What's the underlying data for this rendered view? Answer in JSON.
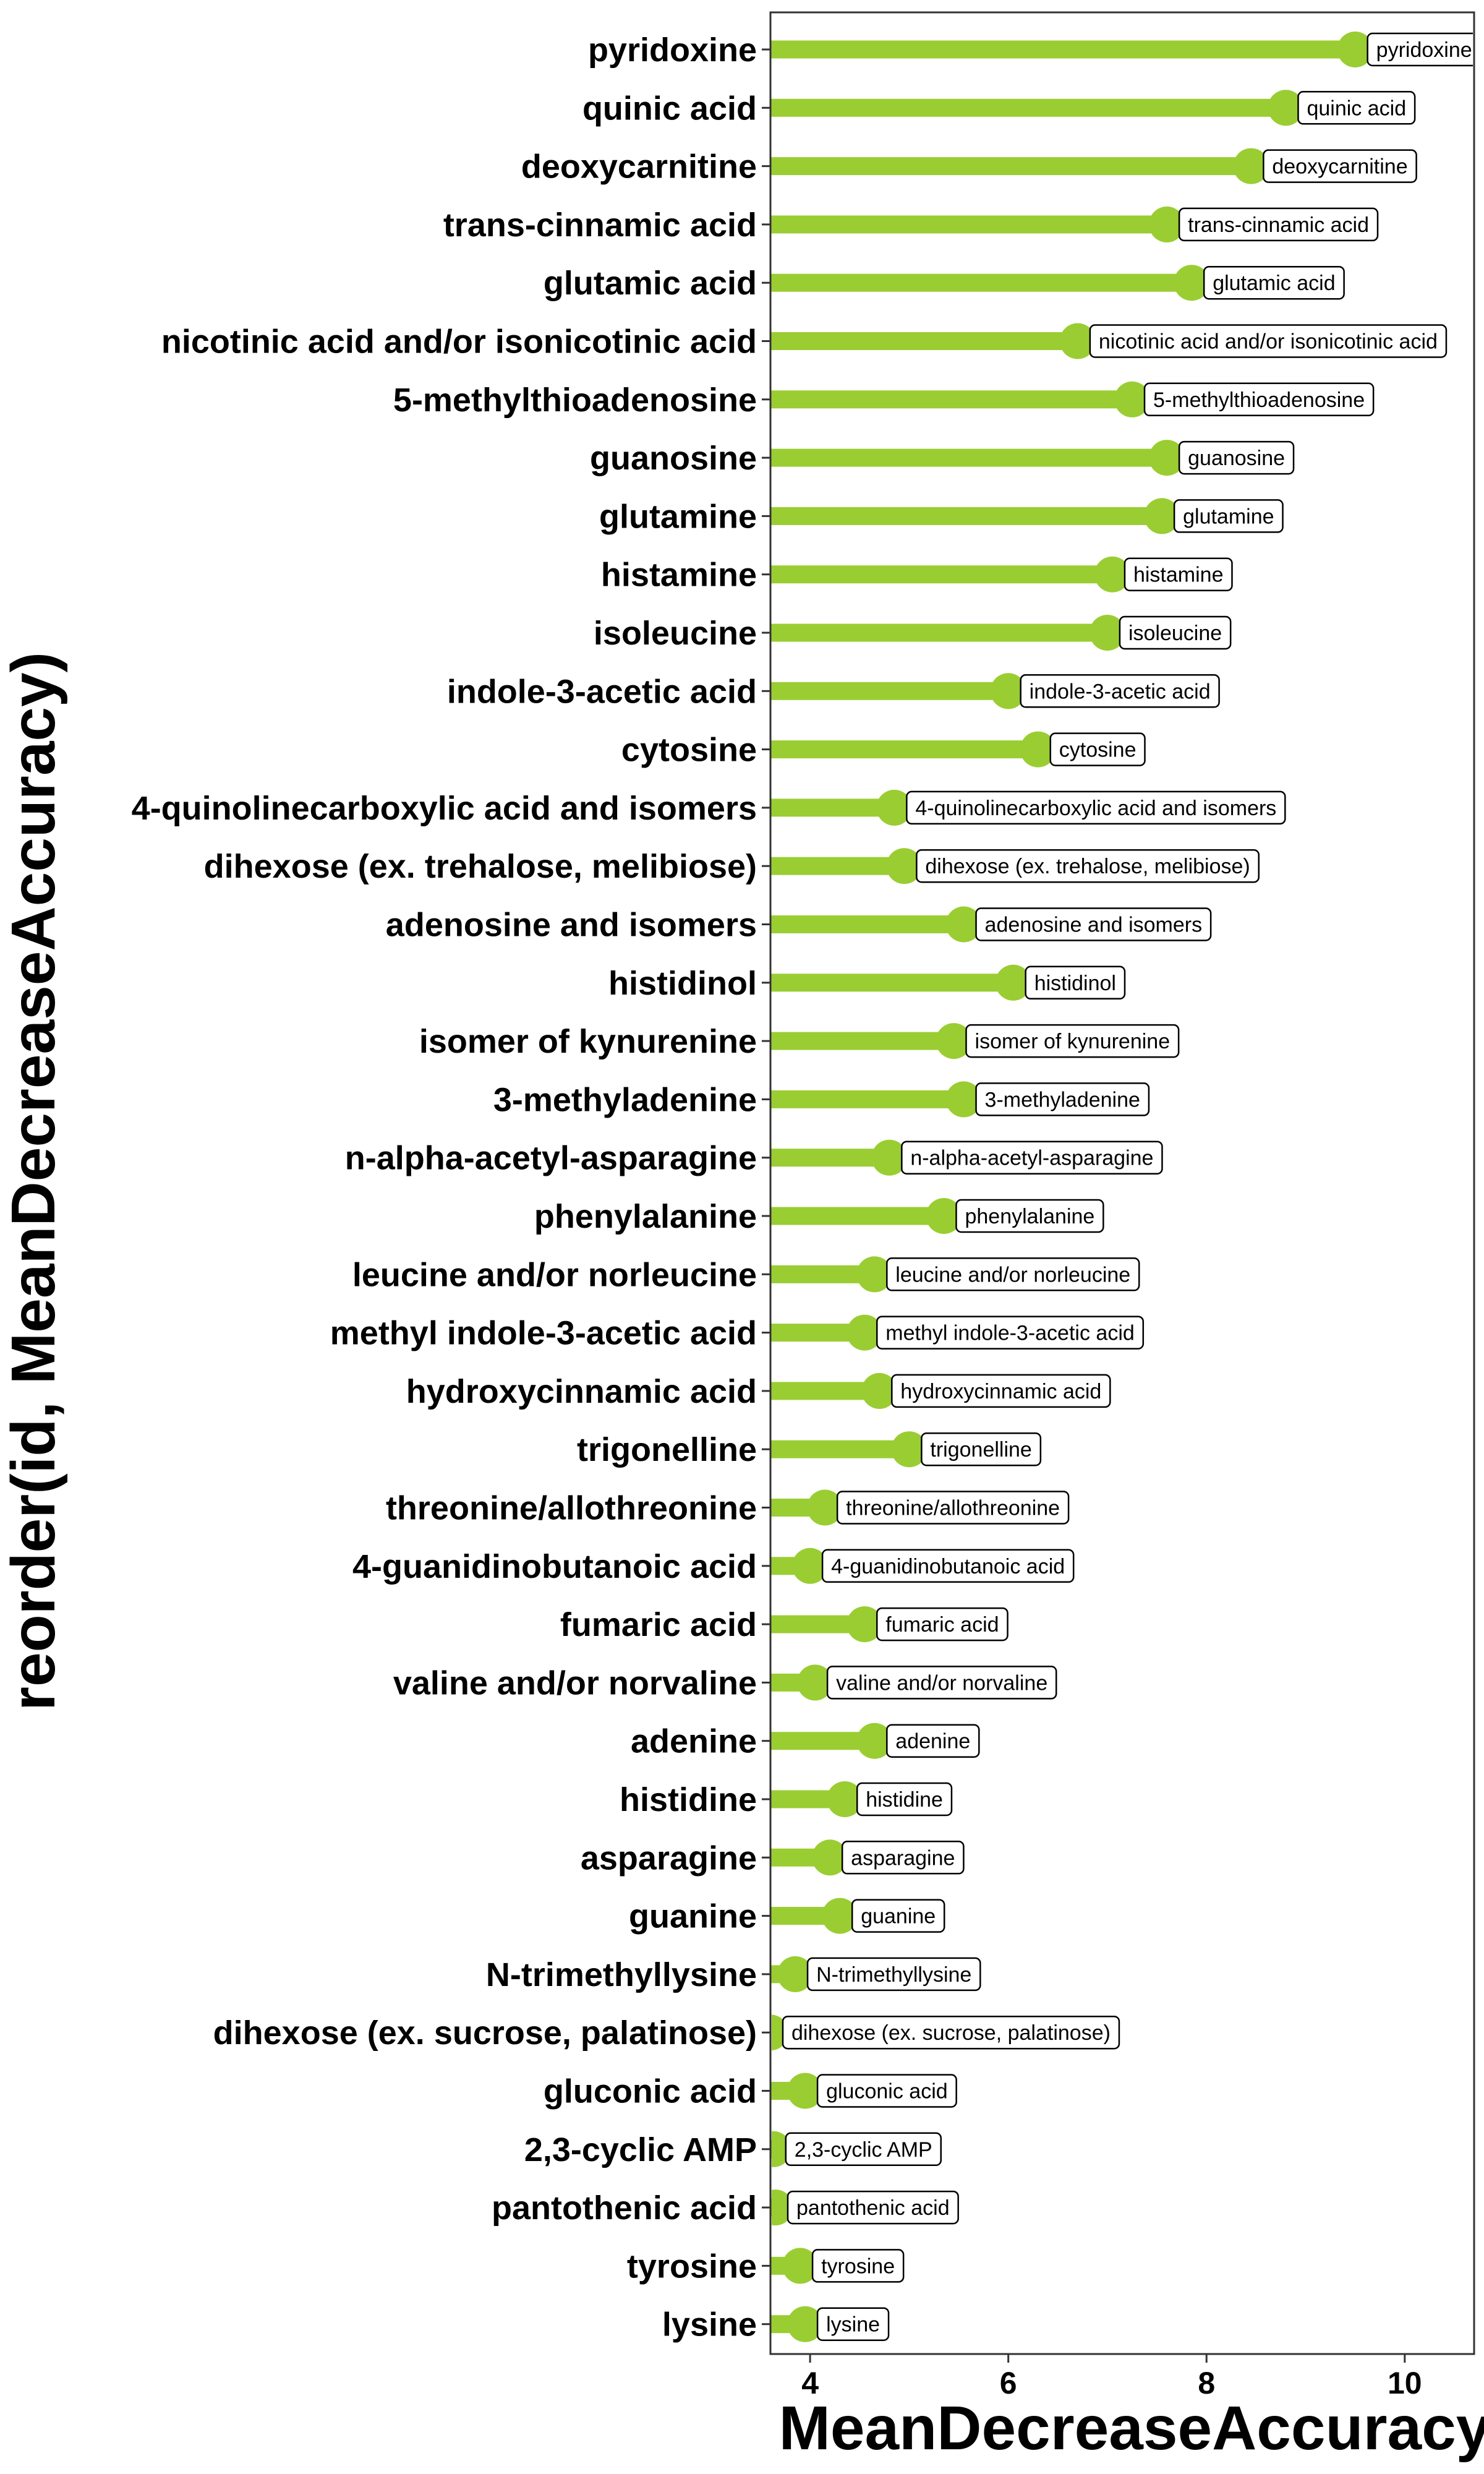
{
  "chart_data": {
    "type": "lollipop",
    "xlabel": "MeanDecreaseAccuracy",
    "ylabel": "reorder(id, MeanDecreaseAccuracy)",
    "xlim": [
      3.6,
      10.7
    ],
    "xticks": [
      4,
      6,
      8,
      10
    ],
    "grid": false,
    "colors": {
      "stem": "#9acd32",
      "frame": "#333333"
    },
    "categories": [
      "pyridoxine",
      "quinic acid",
      "deoxycarnitine",
      "trans-cinnamic acid",
      "glutamic acid",
      "nicotinic acid and/or isonicotinic acid",
      "5-methylthioadenosine",
      "guanosine",
      "glutamine",
      "histamine",
      "isoleucine",
      "indole-3-acetic acid",
      "cytosine",
      "4-quinolinecarboxylic acid and isomers",
      "dihexose (ex. trehalose, melibiose)",
      "adenosine and isomers",
      "histidinol",
      "isomer of kynurenine",
      "3-methyladenine",
      "n-alpha-acetyl-asparagine",
      "phenylalanine",
      "leucine and/or norleucine",
      "methyl indole-3-acetic acid",
      "hydroxycinnamic acid",
      "trigonelline",
      "threonine/allothreonine",
      "4-guanidinobutanoic acid",
      "fumaric acid",
      "valine and/or norvaline",
      "adenine",
      "histidine",
      "asparagine",
      "guanine",
      "N-trimethyllysine",
      "dihexose (ex. sucrose, palatinose)",
      "gluconic acid",
      "2,3-cyclic AMP",
      "pantothenic acid",
      "tyrosine",
      "lysine"
    ],
    "values": [
      9.5,
      8.8,
      8.45,
      7.6,
      7.85,
      6.7,
      7.25,
      7.6,
      7.55,
      7.05,
      7.0,
      6.0,
      6.3,
      4.85,
      4.95,
      5.55,
      6.05,
      5.45,
      5.55,
      4.8,
      5.35,
      4.65,
      4.55,
      4.7,
      5.0,
      4.15,
      4.0,
      4.55,
      4.05,
      4.65,
      4.35,
      4.2,
      4.3,
      3.85,
      3.6,
      3.95,
      3.63,
      3.65,
      3.9,
      3.95
    ]
  }
}
